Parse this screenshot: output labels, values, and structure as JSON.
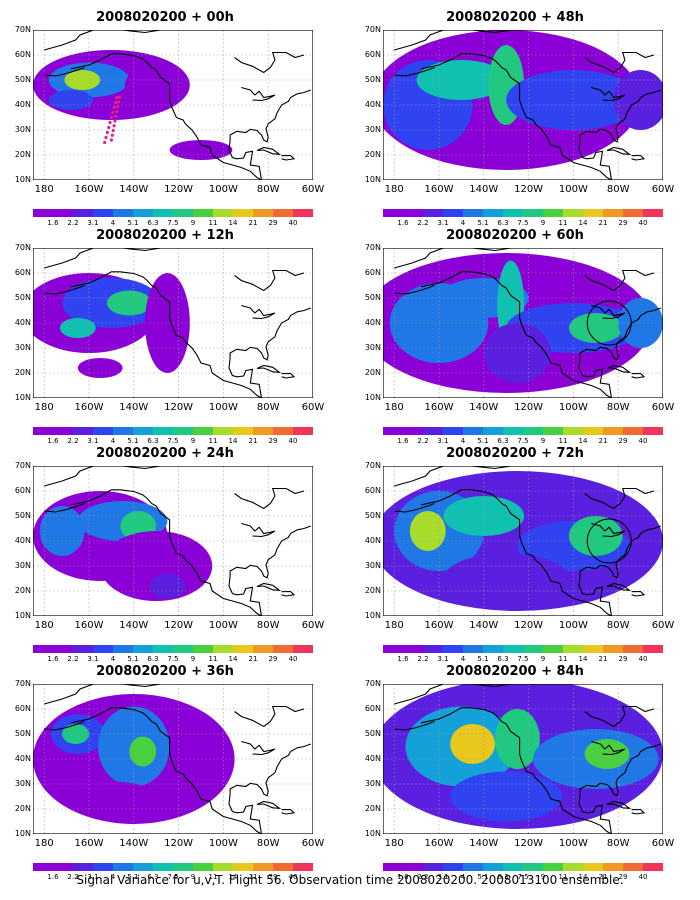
{
  "panels": [
    {
      "title": "2008020200 + 00h",
      "col": 0,
      "row": 0
    },
    {
      "title": "2008020200 + 48h",
      "col": 1,
      "row": 0
    },
    {
      "title": "2008020200 + 12h",
      "col": 0,
      "row": 1
    },
    {
      "title": "2008020200 + 60h",
      "col": 1,
      "row": 1
    },
    {
      "title": "2008020200 + 24h",
      "col": 0,
      "row": 2
    },
    {
      "title": "2008020200 + 72h",
      "col": 1,
      "row": 2
    },
    {
      "title": "2008020200 + 36h",
      "col": 0,
      "row": 3
    },
    {
      "title": "2008020200 + 84h",
      "col": 1,
      "row": 3
    }
  ],
  "lat_labels": [
    "70N",
    "60N",
    "50N",
    "40N",
    "30N",
    "20N",
    "10N"
  ],
  "lon_labels": [
    "180",
    "160W",
    "140W",
    "120W",
    "100W",
    "80W",
    "60W"
  ],
  "colorbar": {
    "labels": [
      "1.6",
      "2.2",
      "3.1",
      "4",
      "5.1",
      "6.3",
      "7.5",
      "9",
      "11",
      "14",
      "21",
      "29",
      "40"
    ],
    "colors": [
      "#8a00d6",
      "#8a00d6",
      "#5b1fe0",
      "#2f44f0",
      "#1f78e6",
      "#14a0d8",
      "#10c0b0",
      "#20c880",
      "#48d040",
      "#a8dc2a",
      "#e8c81c",
      "#f09a26",
      "#f06a34",
      "#f0345a"
    ]
  },
  "footer": "Signal Variance for u,v,T. Flight 56. Observation time 2008020200. 2008013100 ensemble."
}
